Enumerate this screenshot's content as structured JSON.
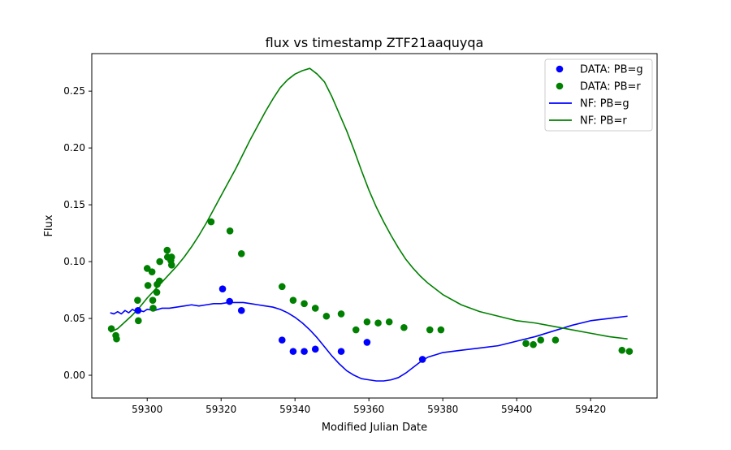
{
  "chart_data": {
    "type": "scatter",
    "title": "flux vs timestamp ZTF21aaquyqa",
    "xlabel": "Modified Julian Date",
    "ylabel": "Flux",
    "xlim": [
      59285,
      59438
    ],
    "ylim": [
      -0.02,
      0.283
    ],
    "x_ticks": [
      59300,
      59320,
      59340,
      59360,
      59380,
      59400,
      59420
    ],
    "y_ticks": [
      0.0,
      0.05,
      0.1,
      0.15,
      0.2,
      0.25
    ],
    "x_tick_labels": [
      "59300",
      "59320",
      "59340",
      "59360",
      "59380",
      "59400",
      "59420"
    ],
    "y_tick_labels": [
      "0.00",
      "0.05",
      "0.10",
      "0.15",
      "0.20",
      "0.25"
    ],
    "grid": false,
    "legend_position": "top-right",
    "legend": [
      "DATA: PB=g",
      "DATA: PB=r",
      "NF: PB=g",
      "NF: PB=r"
    ],
    "colors": {
      "g": "#0000ff",
      "r": "#008000"
    },
    "series": [
      {
        "name": "DATA: PB=g",
        "kind": "scatter",
        "color": "#0000ff",
        "points": [
          [
            59297.5,
            0.057
          ],
          [
            59320.4,
            0.076
          ],
          [
            59322.3,
            0.065
          ],
          [
            59325.5,
            0.057
          ],
          [
            59336.5,
            0.031
          ],
          [
            59339.5,
            0.021
          ],
          [
            59342.5,
            0.021
          ],
          [
            59345.5,
            0.023
          ],
          [
            59352.5,
            0.021
          ],
          [
            59359.5,
            0.029
          ],
          [
            59374.5,
            0.014
          ]
        ]
      },
      {
        "name": "DATA: PB=r",
        "kind": "scatter",
        "color": "#008000",
        "points": [
          [
            59290.3,
            0.041
          ],
          [
            59291.5,
            0.035
          ],
          [
            59291.7,
            0.032
          ],
          [
            59297.4,
            0.066
          ],
          [
            59297.6,
            0.048
          ],
          [
            59300.0,
            0.094
          ],
          [
            59300.2,
            0.079
          ],
          [
            59301.3,
            0.091
          ],
          [
            59301.5,
            0.066
          ],
          [
            59301.6,
            0.059
          ],
          [
            59302.6,
            0.073
          ],
          [
            59302.7,
            0.08
          ],
          [
            59303.3,
            0.083
          ],
          [
            59303.4,
            0.1
          ],
          [
            59305.4,
            0.11
          ],
          [
            59305.5,
            0.104
          ],
          [
            59306.4,
            0.101
          ],
          [
            59306.6,
            0.104
          ],
          [
            59306.6,
            0.097
          ],
          [
            59317.3,
            0.135
          ],
          [
            59322.4,
            0.127
          ],
          [
            59325.5,
            0.107
          ],
          [
            59336.5,
            0.078
          ],
          [
            59339.5,
            0.066
          ],
          [
            59342.5,
            0.063
          ],
          [
            59345.5,
            0.059
          ],
          [
            59348.5,
            0.052
          ],
          [
            59352.5,
            0.054
          ],
          [
            59356.5,
            0.04
          ],
          [
            59359.5,
            0.047
          ],
          [
            59362.5,
            0.046
          ],
          [
            59365.5,
            0.047
          ],
          [
            59369.5,
            0.042
          ],
          [
            59376.5,
            0.04
          ],
          [
            59379.5,
            0.04
          ],
          [
            59402.5,
            0.028
          ],
          [
            59404.5,
            0.027
          ],
          [
            59406.5,
            0.031
          ],
          [
            59410.5,
            0.031
          ],
          [
            59428.5,
            0.022
          ],
          [
            59430.5,
            0.021
          ]
        ]
      },
      {
        "name": "NF: PB=g",
        "kind": "line",
        "color": "#0000ff",
        "points": [
          [
            59290,
            0.055
          ],
          [
            59291,
            0.054
          ],
          [
            59292,
            0.056
          ],
          [
            59293,
            0.054
          ],
          [
            59294,
            0.057
          ],
          [
            59295,
            0.055
          ],
          [
            59296,
            0.058
          ],
          [
            59297,
            0.056
          ],
          [
            59298,
            0.057
          ],
          [
            59299,
            0.056
          ],
          [
            59300,
            0.058
          ],
          [
            59302,
            0.057
          ],
          [
            59304,
            0.059
          ],
          [
            59306,
            0.059
          ],
          [
            59308,
            0.06
          ],
          [
            59310,
            0.061
          ],
          [
            59312,
            0.062
          ],
          [
            59314,
            0.061
          ],
          [
            59316,
            0.062
          ],
          [
            59318,
            0.063
          ],
          [
            59320,
            0.063
          ],
          [
            59322,
            0.064
          ],
          [
            59324,
            0.064
          ],
          [
            59326,
            0.064
          ],
          [
            59328,
            0.063
          ],
          [
            59330,
            0.062
          ],
          [
            59332,
            0.061
          ],
          [
            59334,
            0.06
          ],
          [
            59336,
            0.058
          ],
          [
            59338,
            0.055
          ],
          [
            59340,
            0.051
          ],
          [
            59342,
            0.046
          ],
          [
            59344,
            0.04
          ],
          [
            59346,
            0.033
          ],
          [
            59348,
            0.025
          ],
          [
            59350,
            0.017
          ],
          [
            59352,
            0.01
          ],
          [
            59354,
            0.004
          ],
          [
            59356,
            0.0
          ],
          [
            59358,
            -0.003
          ],
          [
            59360,
            -0.004
          ],
          [
            59362,
            -0.005
          ],
          [
            59364,
            -0.005
          ],
          [
            59366,
            -0.004
          ],
          [
            59368,
            -0.002
          ],
          [
            59370,
            0.002
          ],
          [
            59372,
            0.007
          ],
          [
            59374,
            0.012
          ],
          [
            59376,
            0.016
          ],
          [
            59378,
            0.018
          ],
          [
            59380,
            0.02
          ],
          [
            59385,
            0.022
          ],
          [
            59390,
            0.024
          ],
          [
            59395,
            0.026
          ],
          [
            59400,
            0.03
          ],
          [
            59405,
            0.034
          ],
          [
            59410,
            0.039
          ],
          [
            59415,
            0.044
          ],
          [
            59420,
            0.048
          ],
          [
            59425,
            0.05
          ],
          [
            59430,
            0.052
          ]
        ]
      },
      {
        "name": "NF: PB=r",
        "kind": "line",
        "color": "#008000",
        "points": [
          [
            59290,
            0.038
          ],
          [
            59292,
            0.041
          ],
          [
            59294,
            0.047
          ],
          [
            59296,
            0.053
          ],
          [
            59298,
            0.06
          ],
          [
            59300,
            0.068
          ],
          [
            59302,
            0.075
          ],
          [
            59304,
            0.082
          ],
          [
            59306,
            0.089
          ],
          [
            59308,
            0.096
          ],
          [
            59310,
            0.104
          ],
          [
            59312,
            0.113
          ],
          [
            59314,
            0.123
          ],
          [
            59316,
            0.134
          ],
          [
            59318,
            0.146
          ],
          [
            59320,
            0.158
          ],
          [
            59322,
            0.17
          ],
          [
            59324,
            0.182
          ],
          [
            59326,
            0.195
          ],
          [
            59328,
            0.208
          ],
          [
            59330,
            0.22
          ],
          [
            59332,
            0.232
          ],
          [
            59334,
            0.243
          ],
          [
            59336,
            0.253
          ],
          [
            59338,
            0.26
          ],
          [
            59340,
            0.265
          ],
          [
            59342,
            0.268
          ],
          [
            59344,
            0.27
          ],
          [
            59346,
            0.265
          ],
          [
            59348,
            0.258
          ],
          [
            59350,
            0.245
          ],
          [
            59352,
            0.23
          ],
          [
            59354,
            0.215
          ],
          [
            59356,
            0.198
          ],
          [
            59358,
            0.18
          ],
          [
            59360,
            0.163
          ],
          [
            59362,
            0.148
          ],
          [
            59364,
            0.135
          ],
          [
            59366,
            0.123
          ],
          [
            59368,
            0.112
          ],
          [
            59370,
            0.102
          ],
          [
            59372,
            0.094
          ],
          [
            59374,
            0.087
          ],
          [
            59376,
            0.081
          ],
          [
            59378,
            0.076
          ],
          [
            59380,
            0.071
          ],
          [
            59385,
            0.062
          ],
          [
            59390,
            0.056
          ],
          [
            59395,
            0.052
          ],
          [
            59400,
            0.048
          ],
          [
            59405,
            0.046
          ],
          [
            59410,
            0.043
          ],
          [
            59415,
            0.04
          ],
          [
            59420,
            0.037
          ],
          [
            59425,
            0.034
          ],
          [
            59430,
            0.032
          ]
        ]
      }
    ]
  }
}
